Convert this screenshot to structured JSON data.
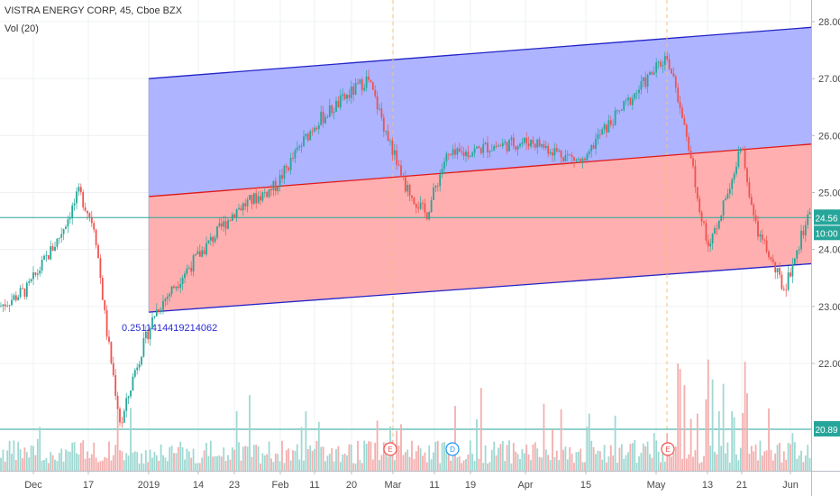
{
  "header": {
    "title": "VISTRA ENERGY CORP, 45, Cboe BZX",
    "indicator": "Vol (20)"
  },
  "chart_data": {
    "type": "candlestick",
    "symbol": "VISTRA ENERGY CORP",
    "interval": "45",
    "exchange": "Cboe BZX",
    "volume_indicator": "Vol (20)",
    "y_axis": {
      "ticks": [
        "28.00",
        "27.00",
        "26.00",
        "25.00",
        "24.00",
        "23.00",
        "22.00"
      ],
      "range": [
        20.7,
        28.2
      ]
    },
    "x_axis": {
      "ticks": [
        "Dec",
        "17",
        "2019",
        "14",
        "23",
        "Feb",
        "11",
        "20",
        "Mar",
        "11",
        "19",
        "Apr",
        "15",
        "May",
        "13",
        "21",
        "Jun"
      ]
    },
    "last_price": {
      "value": 24.56,
      "label": "24.56",
      "countdown": "10:00",
      "color": "#26a69a"
    },
    "volume_label": {
      "value": 20.89,
      "label": "20.89"
    },
    "regression_channel": {
      "upper": {
        "from": [
          "2019",
          27.0
        ],
        "to": [
          "Jun",
          27.9
        ]
      },
      "middle": {
        "from": [
          "2019",
          24.93
        ],
        "to": [
          "Jun",
          25.85
        ]
      },
      "lower": {
        "from": [
          "2019",
          22.9
        ],
        "to": [
          "Jun",
          23.75
        ]
      },
      "annotation": "0.2511414419214062",
      "upper_fill": "#aab0ff",
      "lower_fill": "#ffabab"
    },
    "events": [
      "E",
      "D",
      "E"
    ],
    "price_path": [
      [
        "Dec-start",
        23.0
      ],
      [
        "Dec",
        23.3
      ],
      [
        "Dec-mid",
        24.2
      ],
      [
        "17",
        25.0
      ],
      [
        "17b",
        24.4
      ],
      [
        "Dec-late",
        22.6
      ],
      [
        "Dec-low",
        20.9
      ],
      [
        "Dec-end",
        21.9
      ],
      [
        "2019",
        22.9
      ],
      [
        "14",
        23.6
      ],
      [
        "23",
        24.7
      ],
      [
        "Feb",
        25.1
      ],
      [
        "11",
        26.2
      ],
      [
        "20",
        27.0
      ],
      [
        "Mar",
        25.1
      ],
      [
        "Mar-b",
        24.6
      ],
      [
        "11",
        25.6
      ],
      [
        "19",
        25.8
      ],
      [
        "Apr",
        25.9
      ],
      [
        "15",
        25.5
      ],
      [
        "Apr-late",
        25.9
      ],
      [
        "May",
        27.4
      ],
      [
        "May-b",
        26.2
      ],
      [
        "13",
        24.0
      ],
      [
        "21",
        25.8
      ],
      [
        "21b",
        24.4
      ],
      [
        "Jun-a",
        23.3
      ],
      [
        "Jun",
        24.6
      ]
    ]
  }
}
